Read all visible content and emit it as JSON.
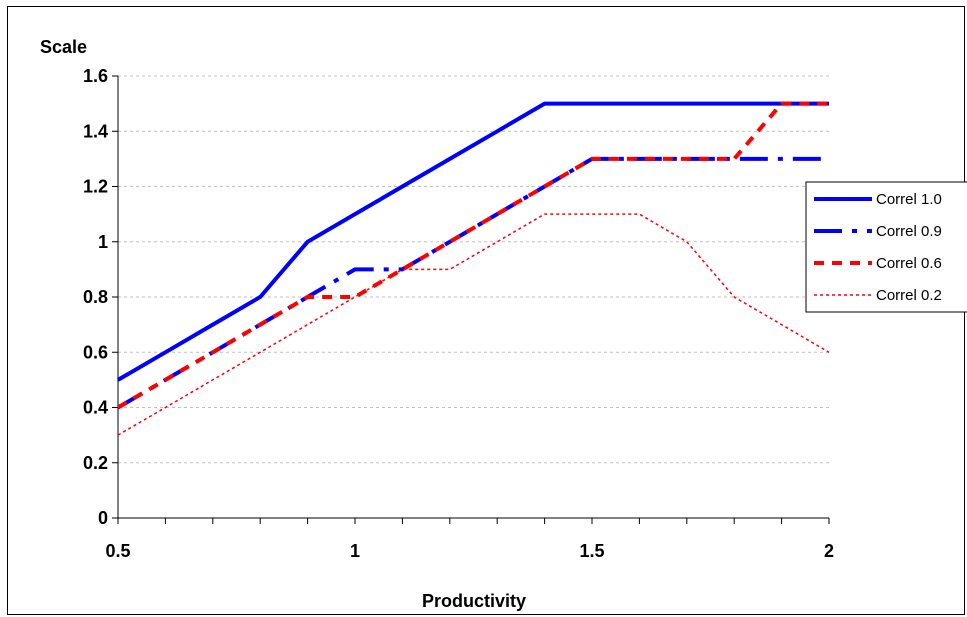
{
  "chart_data": {
    "type": "line",
    "title": "",
    "xlabel": "Productivity",
    "ylabel": "Scale",
    "xlim": [
      0.5,
      2
    ],
    "ylim": [
      0,
      1.6
    ],
    "x_ticks": [
      "0.5",
      "1",
      "1.5",
      "2"
    ],
    "y_ticks": [
      "0",
      "0.2",
      "0.4",
      "0.6",
      "0.8",
      "1",
      "1.2",
      "1.4",
      "1.6"
    ],
    "grid": "horizontal dashed",
    "legend_position": "right",
    "x": [
      0.5,
      0.6,
      0.7,
      0.8,
      0.9,
      1.0,
      1.1,
      1.2,
      1.3,
      1.4,
      1.5,
      1.6,
      1.7,
      1.8,
      1.9,
      2.0
    ],
    "series": [
      {
        "name": "Correl 1.0",
        "color": "#0000ff",
        "style": "solid",
        "values": [
          0.5,
          0.6,
          0.7,
          0.8,
          1.0,
          1.1,
          1.2,
          1.3,
          1.4,
          1.5,
          1.5,
          1.5,
          1.5,
          1.5,
          1.5,
          1.5
        ]
      },
      {
        "name": "Correl 0.9",
        "color": "#0000ff",
        "style": "long-dash",
        "values": [
          0.4,
          0.5,
          0.6,
          0.7,
          0.8,
          0.9,
          0.9,
          1.0,
          1.1,
          1.2,
          1.3,
          1.3,
          1.3,
          1.3,
          1.3,
          1.3
        ]
      },
      {
        "name": "Correl 0.6",
        "color": "#ff0000",
        "style": "short-dash",
        "values": [
          0.4,
          0.5,
          0.6,
          0.7,
          0.8,
          0.8,
          0.9,
          1.0,
          1.1,
          1.2,
          1.3,
          1.3,
          1.3,
          1.3,
          1.5,
          1.5
        ]
      },
      {
        "name": "Correl 0.2",
        "color": "#ff0000",
        "style": "dotted",
        "values": [
          0.3,
          0.4,
          0.5,
          0.6,
          0.7,
          0.8,
          0.9,
          0.9,
          1.0,
          1.1,
          1.1,
          1.1,
          1.0,
          0.8,
          0.7,
          0.6
        ]
      }
    ]
  }
}
